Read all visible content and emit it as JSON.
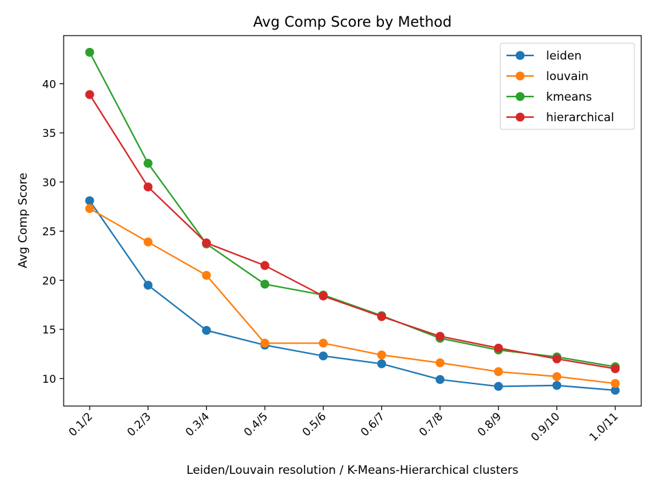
{
  "chart_data": {
    "type": "line",
    "title": "Avg Comp Score by Method",
    "xlabel": "Leiden/Louvain resolution  /  K-Means-Hierarchical clusters",
    "ylabel": "Avg Comp Score",
    "categories": [
      "0.1/2",
      "0.2/3",
      "0.3/4",
      "0.4/5",
      "0.5/6",
      "0.6/7",
      "0.7/8",
      "0.8/9",
      "0.9/10",
      "1.0/11"
    ],
    "ylim": [
      7.2,
      44.9
    ],
    "yticks": [
      10,
      15,
      20,
      25,
      30,
      35,
      40
    ],
    "grid": false,
    "legend_position": "top-right",
    "series": [
      {
        "name": "leiden",
        "color": "#1f77b4",
        "values": [
          28.1,
          19.5,
          14.9,
          13.4,
          12.3,
          11.5,
          9.9,
          9.2,
          9.3,
          8.8
        ]
      },
      {
        "name": "louvain",
        "color": "#ff7f0e",
        "values": [
          27.3,
          23.9,
          20.5,
          13.6,
          13.6,
          12.4,
          11.6,
          10.7,
          10.2,
          9.5
        ]
      },
      {
        "name": "kmeans",
        "color": "#2ca02c",
        "values": [
          43.2,
          31.9,
          23.7,
          19.6,
          18.5,
          16.4,
          14.1,
          12.9,
          12.2,
          11.2
        ]
      },
      {
        "name": "hierarchical",
        "color": "#d62728",
        "values": [
          38.9,
          29.5,
          23.8,
          21.5,
          18.4,
          16.3,
          14.3,
          13.1,
          12.0,
          11.0
        ]
      }
    ]
  }
}
